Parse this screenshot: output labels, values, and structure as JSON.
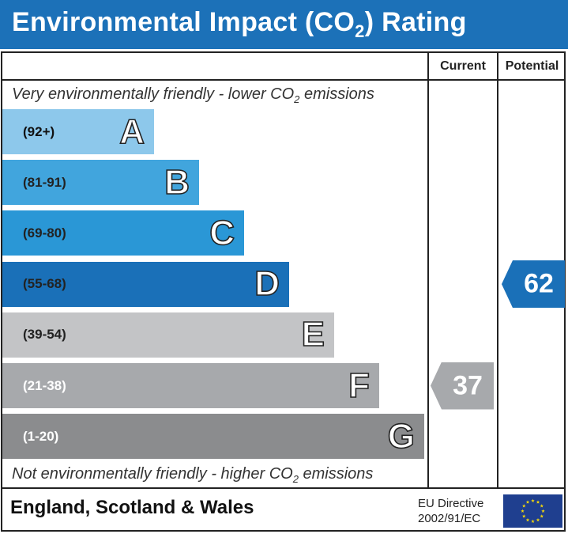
{
  "header": {
    "title_main": "Environmental Impact (CO",
    "title_sub": "2",
    "title_end": ") Rating"
  },
  "columns": {
    "current": "Current",
    "potential": "Potential"
  },
  "notes": {
    "top_main": "Very environmentally friendly - lower CO",
    "top_sub": "2",
    "top_end": " emissions",
    "bottom_main": "Not environmentally friendly - higher CO",
    "bottom_sub": "2",
    "bottom_end": " emissions"
  },
  "footer": {
    "country": "England, Scotland & Wales",
    "directive_line1": "EU Directive",
    "directive_line2": "2002/91/EC",
    "flag_icon": "eu-flag-icon"
  },
  "chart_data": {
    "type": "bar",
    "categories": [
      "A",
      "B",
      "C",
      "D",
      "E",
      "F",
      "G"
    ],
    "ranges": [
      "(92+)",
      "(81-91)",
      "(69-80)",
      "(55-68)",
      "(39-54)",
      "(21-38)",
      "(1-20)"
    ],
    "band_colors": [
      "#8dc8eb",
      "#41a5dd",
      "#2a97d6",
      "#1a70b8",
      "#c3c4c6",
      "#a7a9ac",
      "#8b8c8e"
    ],
    "range_text_colors": [
      "#111111",
      "#222222",
      "#222222",
      "#222222",
      "#222222",
      "#ffffff",
      "#ffffff"
    ],
    "current": {
      "value": 37,
      "band": "F",
      "color": "#a7a9ac"
    },
    "potential": {
      "value": 62,
      "band": "D",
      "color": "#1a70b8"
    }
  }
}
